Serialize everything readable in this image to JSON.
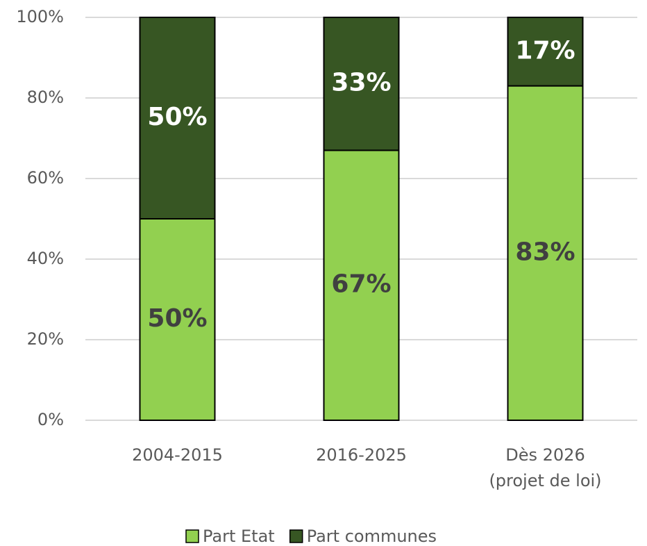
{
  "chart_data": {
    "type": "stacked_bar",
    "categories": [
      "2004-2015",
      "2016-2025",
      "Dès 2026\n(projet de loi)"
    ],
    "series": [
      {
        "name": "Part Etat",
        "color": "#92d050",
        "label_color": "#404040",
        "values": [
          50,
          67,
          83
        ],
        "value_labels": [
          "50%",
          "67%",
          "83%"
        ]
      },
      {
        "name": "Part communes",
        "color": "#375623",
        "label_color": "#ffffff",
        "values": [
          50,
          33,
          17
        ],
        "value_labels": [
          "50%",
          "33%",
          "17%"
        ]
      }
    ],
    "ylim": [
      0,
      100
    ],
    "yticks": [
      {
        "value": 0,
        "label": "0%"
      },
      {
        "value": 20,
        "label": "20%"
      },
      {
        "value": 40,
        "label": "40%"
      },
      {
        "value": 60,
        "label": "60%"
      },
      {
        "value": 80,
        "label": "80%"
      },
      {
        "value": 100,
        "label": "100%"
      }
    ],
    "grid": true,
    "legend": "bottom"
  }
}
